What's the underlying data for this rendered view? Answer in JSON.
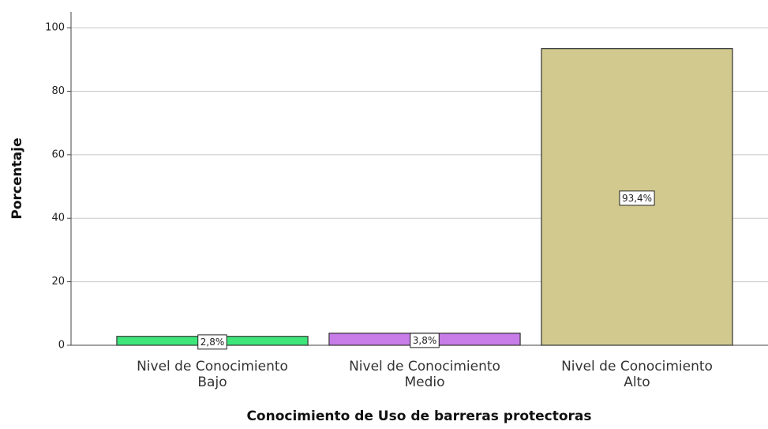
{
  "chart_data": {
    "type": "bar",
    "x_label": "Conocimiento de Uso de barreras protectoras",
    "y_label": "Porcentaje",
    "categories": [
      [
        "Nivel de Conocimiento",
        "Bajo"
      ],
      [
        "Nivel de Conocimiento",
        "Medio"
      ],
      [
        "Nivel de Conocimiento",
        "Alto"
      ]
    ],
    "values": [
      2.8,
      3.8,
      93.4
    ],
    "value_labels": [
      "2,8%",
      "3,8%",
      "93,4%"
    ],
    "colors": [
      "#3ee67a",
      "#c77ce8",
      "#d1c98e"
    ],
    "ylim": [
      0,
      105
    ],
    "yticks": [
      0,
      20,
      40,
      60,
      80,
      100
    ],
    "grid": true
  }
}
